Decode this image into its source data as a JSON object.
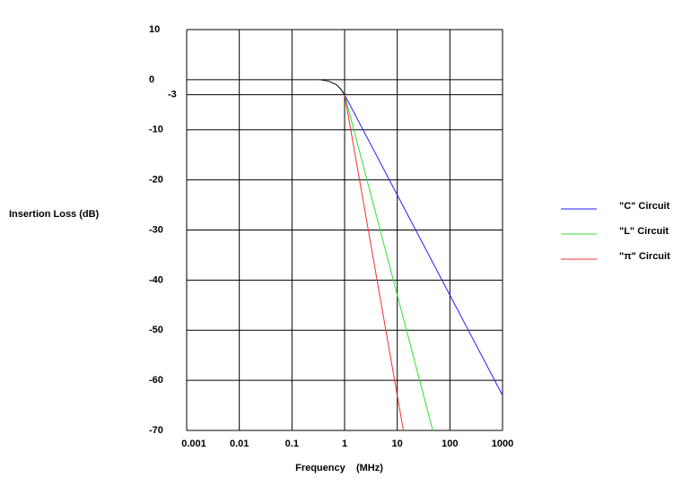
{
  "chart_data": {
    "type": "line",
    "xscale": "log",
    "xlabel": "Frequency    (MHz)",
    "ylabel": "Insertion Loss (dB)",
    "xlim": [
      0.001,
      1000
    ],
    "xticks": [
      0.001,
      0.01,
      0.1,
      1,
      10,
      100,
      1000
    ],
    "ylim": [
      -70,
      10
    ],
    "yticks": [
      10,
      0,
      -3,
      -10,
      -20,
      -30,
      -40,
      -50,
      -60,
      -70
    ],
    "grid": true,
    "series": [
      {
        "color": "#000000",
        "x": [
          0.35,
          0.5,
          0.7,
          0.85,
          1
        ],
        "values": [
          0,
          -0.3,
          -1,
          -1.9,
          -3
        ]
      },
      {
        "name": "\"C\" Circuit",
        "color": "#2020ff",
        "x": [
          1,
          10,
          100,
          1000
        ],
        "values": [
          -3,
          -23,
          -43,
          -63
        ]
      },
      {
        "name": "\"L\" Circuit",
        "color": "#30e030",
        "x": [
          1,
          10,
          47.3
        ],
        "values": [
          -3,
          -43,
          -70
        ]
      },
      {
        "name": "\"π\" Circuit",
        "color": "#f03030",
        "x": [
          1,
          10,
          13.1
        ],
        "values": [
          -3,
          -63,
          -70
        ]
      }
    ]
  }
}
